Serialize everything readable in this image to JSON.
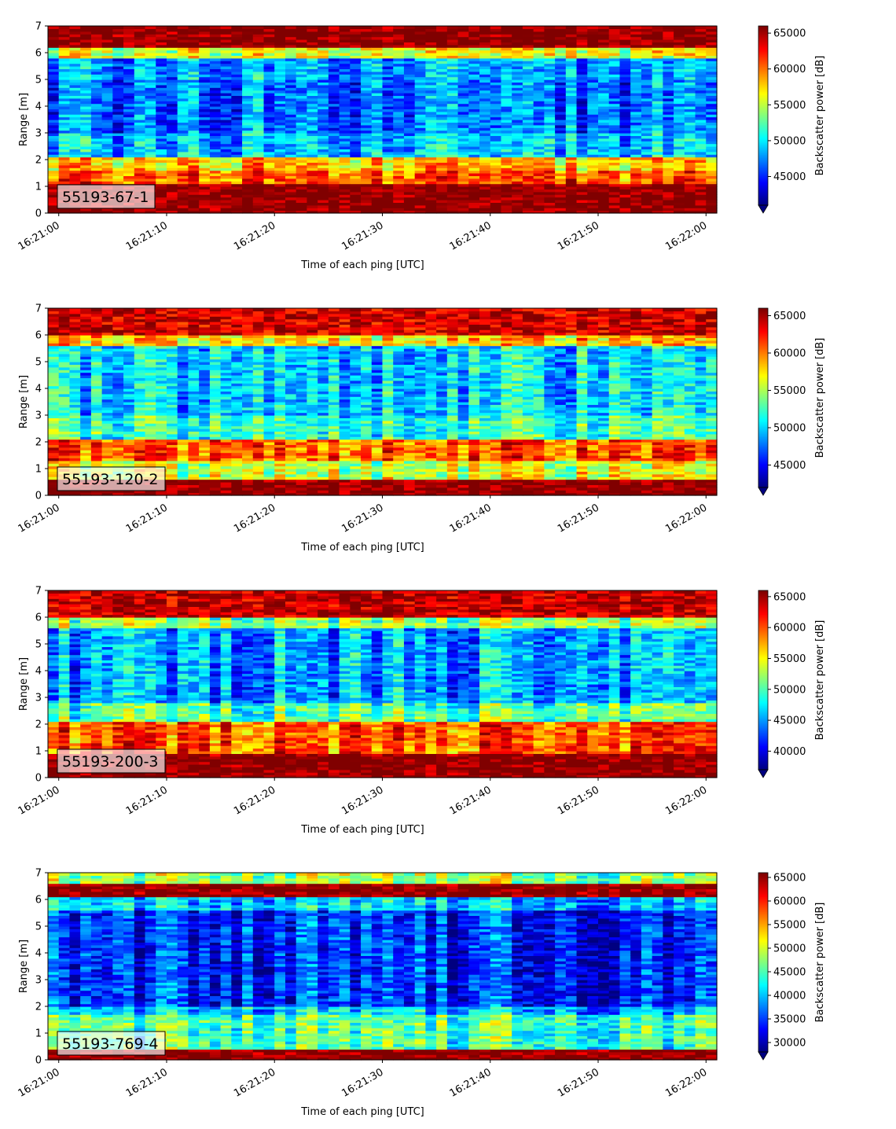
{
  "chart_data": [
    {
      "type": "heatmap",
      "label": "55193-67-1",
      "xlabel": "Time of each ping [UTC]",
      "ylabel": "Range [m]",
      "colorbar_label": "Backscatter power [dB]",
      "colormap": "jet",
      "x_ticks": [
        "16:21:00",
        "16:21:10",
        "16:21:20",
        "16:21:30",
        "16:21:40",
        "16:21:50",
        "16:22:00"
      ],
      "y_ticks": [
        0,
        1,
        2,
        3,
        4,
        5,
        6,
        7
      ],
      "ylim": [
        0,
        7
      ],
      "xlim_seconds": [
        -1,
        61
      ],
      "color_range": [
        41000,
        66000
      ],
      "colorbar_ticks": [
        45000,
        50000,
        55000,
        60000,
        65000
      ],
      "colorbar_tick_labels": [
        "45000",
        "50000",
        "55000",
        "60000",
        "65000"
      ],
      "colorbar_extend": "min",
      "range_profile": [
        [
          0,
          0.15,
          66000
        ],
        [
          0.25,
          1.0,
          66000
        ],
        [
          1.1,
          1.5,
          61000
        ],
        [
          1.6,
          2.1,
          58000
        ],
        [
          2.2,
          3.0,
          49000
        ],
        [
          3.0,
          5.0,
          47000
        ],
        [
          5.0,
          5.8,
          48000
        ],
        [
          5.9,
          6.2,
          56000
        ],
        [
          6.2,
          7.0,
          66000
        ]
      ]
    },
    {
      "type": "heatmap",
      "label": "55193-120-2",
      "xlabel": "Time of each ping [UTC]",
      "ylabel": "Range [m]",
      "colorbar_label": "Backscatter power [dB]",
      "colormap": "jet",
      "x_ticks": [
        "16:21:00",
        "16:21:10",
        "16:21:20",
        "16:21:30",
        "16:21:40",
        "16:21:50",
        "16:22:00"
      ],
      "y_ticks": [
        0,
        1,
        2,
        3,
        4,
        5,
        6,
        7
      ],
      "ylim": [
        0,
        7
      ],
      "xlim_seconds": [
        -1,
        61
      ],
      "color_range": [
        42000,
        66000
      ],
      "colorbar_ticks": [
        45000,
        50000,
        55000,
        60000,
        65000
      ],
      "colorbar_tick_labels": [
        "45000",
        "50000",
        "55000",
        "60000",
        "65000"
      ],
      "colorbar_extend": "min",
      "range_profile": [
        [
          0,
          0.1,
          66000
        ],
        [
          0.2,
          0.6,
          66000
        ],
        [
          0.7,
          1.2,
          56000
        ],
        [
          1.3,
          2.1,
          61000
        ],
        [
          2.2,
          3.0,
          52000
        ],
        [
          3.0,
          5.5,
          50000
        ],
        [
          5.6,
          5.9,
          58000
        ],
        [
          6.0,
          6.3,
          64000
        ],
        [
          6.4,
          7.0,
          64000
        ]
      ]
    },
    {
      "type": "heatmap",
      "label": "55193-200-3",
      "xlabel": "Time of each ping [UTC]",
      "ylabel": "Range [m]",
      "colorbar_label": "Backscatter power [dB]",
      "colormap": "jet",
      "x_ticks": [
        "16:21:00",
        "16:21:10",
        "16:21:20",
        "16:21:30",
        "16:21:40",
        "16:21:50",
        "16:22:00"
      ],
      "y_ticks": [
        0,
        1,
        2,
        3,
        4,
        5,
        6,
        7
      ],
      "ylim": [
        0,
        7
      ],
      "xlim_seconds": [
        -1,
        61
      ],
      "color_range": [
        37000,
        66000
      ],
      "colorbar_ticks": [
        40000,
        45000,
        50000,
        55000,
        60000,
        65000
      ],
      "colorbar_tick_labels": [
        "40000",
        "45000",
        "50000",
        "55000",
        "60000",
        "65000"
      ],
      "colorbar_extend": "min",
      "range_profile": [
        [
          0,
          0.1,
          66000
        ],
        [
          0.2,
          0.8,
          66000
        ],
        [
          0.9,
          2.1,
          60000
        ],
        [
          2.2,
          2.8,
          50000
        ],
        [
          2.9,
          5.5,
          45000
        ],
        [
          5.6,
          6.0,
          52000
        ],
        [
          6.0,
          6.3,
          64000
        ],
        [
          6.4,
          7.0,
          64000
        ]
      ]
    },
    {
      "type": "heatmap",
      "label": "55193-769-4",
      "xlabel": "Time of each ping [UTC]",
      "ylabel": "Range [m]",
      "colorbar_label": "Backscatter power [dB]",
      "colormap": "jet",
      "x_ticks": [
        "16:21:00",
        "16:21:10",
        "16:21:20",
        "16:21:30",
        "16:21:40",
        "16:21:50",
        "16:22:00"
      ],
      "y_ticks": [
        0,
        1,
        2,
        3,
        4,
        5,
        6,
        7
      ],
      "ylim": [
        0,
        7
      ],
      "xlim_seconds": [
        -1,
        61
      ],
      "color_range": [
        28000,
        66000
      ],
      "colorbar_ticks": [
        30000,
        35000,
        40000,
        45000,
        50000,
        55000,
        60000,
        65000
      ],
      "colorbar_tick_labels": [
        "30000",
        "35000",
        "40000",
        "45000",
        "50000",
        "55000",
        "60000",
        "65000"
      ],
      "colorbar_extend": "min",
      "range_profile": [
        [
          0,
          0.1,
          66000
        ],
        [
          0.2,
          0.35,
          66000
        ],
        [
          0.4,
          1.6,
          45000
        ],
        [
          1.7,
          2.0,
          40000
        ],
        [
          2.0,
          5.6,
          34000
        ],
        [
          5.7,
          6.1,
          40000
        ],
        [
          6.1,
          6.5,
          66000
        ],
        [
          6.6,
          7.0,
          48000
        ]
      ]
    }
  ]
}
